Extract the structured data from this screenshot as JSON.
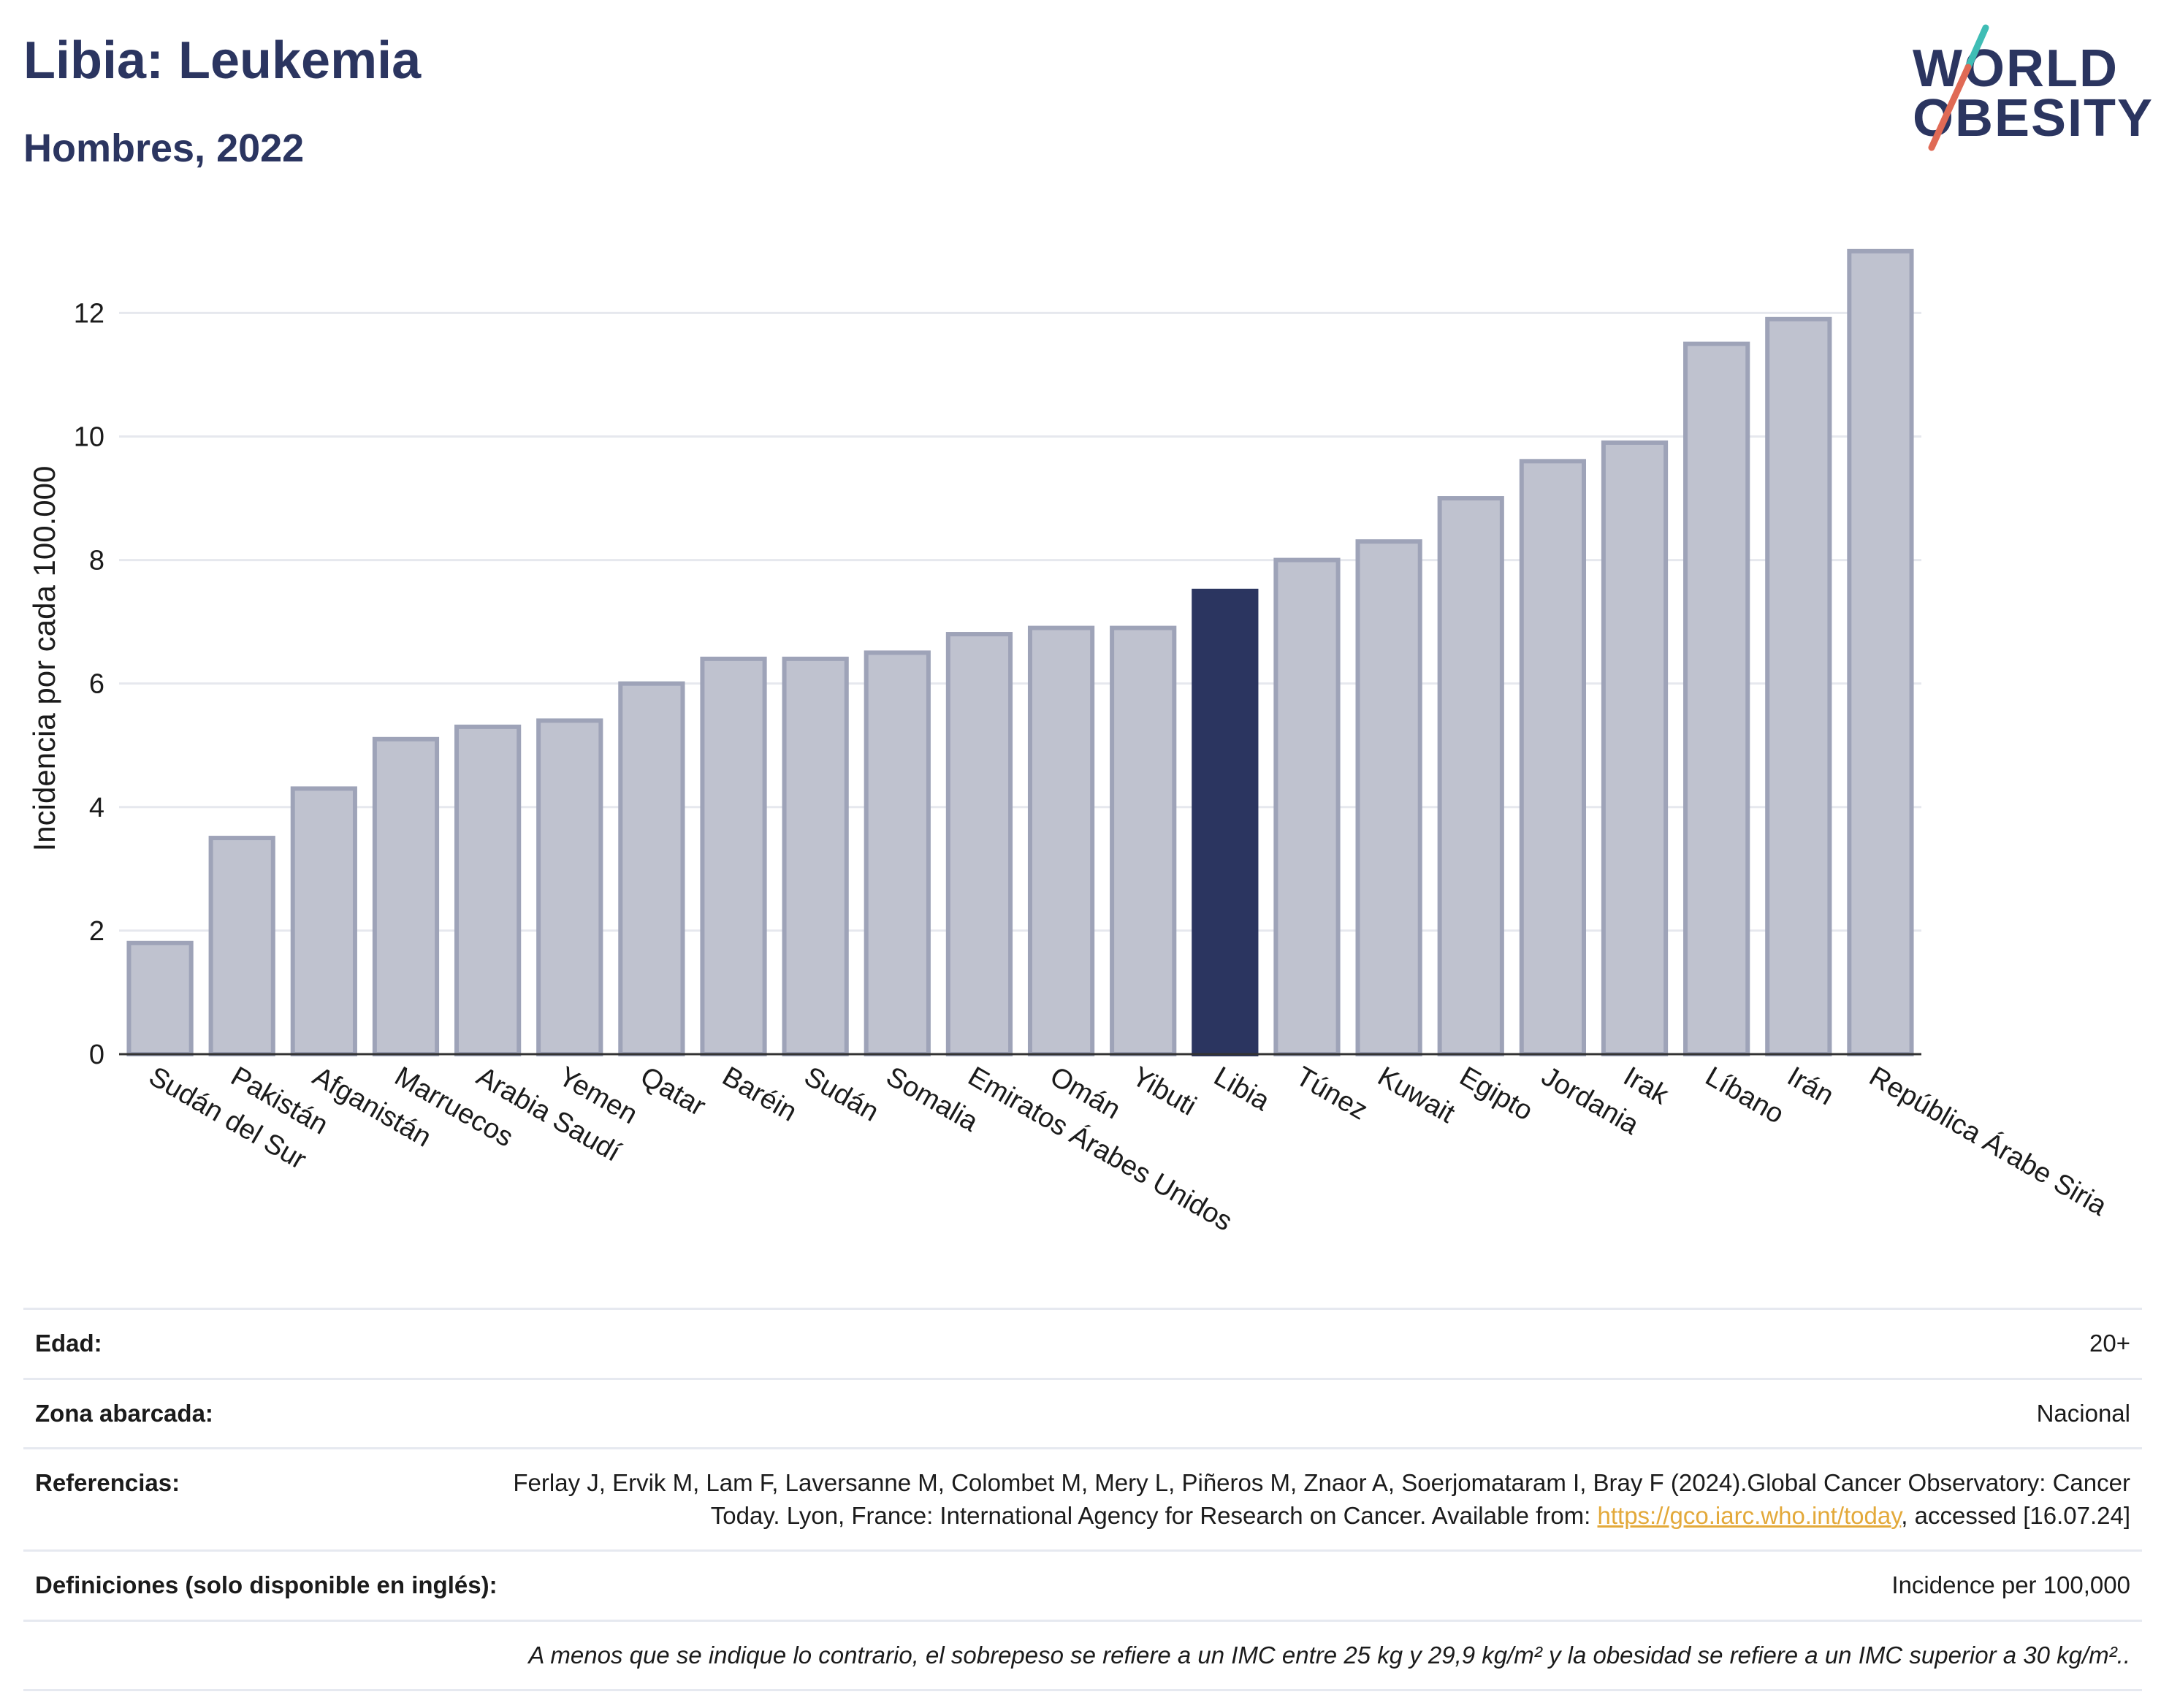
{
  "header": {
    "title": "Libia: Leukemia",
    "subtitle": "Hombres, 2022"
  },
  "logo": {
    "line1": "WORLD",
    "line2": "OBESITY",
    "colors": {
      "text": "#2b3560",
      "slash_top": "#3fbdb5",
      "slash_bottom": "#e06a55"
    }
  },
  "chart_data": {
    "type": "bar",
    "categories": [
      "Sudán del Sur",
      "Pakistán",
      "Afganistán",
      "Marruecos",
      "Arabia Saudí",
      "Yemen",
      "Qatar",
      "Baréin",
      "Sudán",
      "Somalia",
      "Emiratos Árabes Unidos",
      "Omán",
      "Yibuti",
      "Libia",
      "Túnez",
      "Kuwait",
      "Egipto",
      "Jordania",
      "Irak",
      "Líbano",
      "Irán",
      "República Árabe Siria"
    ],
    "values": [
      1.8,
      3.5,
      4.3,
      5.1,
      5.3,
      5.4,
      6.0,
      6.4,
      6.4,
      6.5,
      6.8,
      6.9,
      6.9,
      7.5,
      8.0,
      8.3,
      9.0,
      9.6,
      9.9,
      11.5,
      11.9,
      13.0
    ],
    "highlight": "Libia",
    "ylabel": "Incidencia por cada 100.000",
    "xlabel": "",
    "ylim": [
      0,
      13.4
    ],
    "yticks": [
      0,
      2,
      4,
      6,
      8,
      10,
      12
    ],
    "grid": true,
    "colors": {
      "bar": "#bfc2cf",
      "bar_border": "#9ea3b8",
      "highlight": "#2b3560",
      "grid": "#e6e8ee"
    }
  },
  "info": {
    "age_label": "Edad:",
    "age_value": "20+",
    "area_label": "Zona abarcada:",
    "area_value": "Nacional",
    "ref_label": "Referencias:",
    "ref_text_1": "Ferlay J, Ervik M, Lam F, Laversanne M, Colombet M, Mery L, Piñeros M, Znaor A, Soerjomataram I, Bray F (2024).Global Cancer Observatory: Cancer Today. Lyon, France: International Agency for Research on Cancer. Available from: ",
    "ref_link": "https://gco.iarc.who.int/today",
    "ref_text_2": ", accessed [16.07.24]",
    "def_label": "Definiciones (solo disponible en inglés):",
    "def_value": "Incidence per 100,000",
    "note": "A menos que se indique lo contrario, el sobrepeso se refiere a un IMC entre 25 kg y 29,9 kg/m² y la obesidad se refiere a un IMC superior a 30 kg/m²..",
    "link_color": "#e3a93a"
  }
}
